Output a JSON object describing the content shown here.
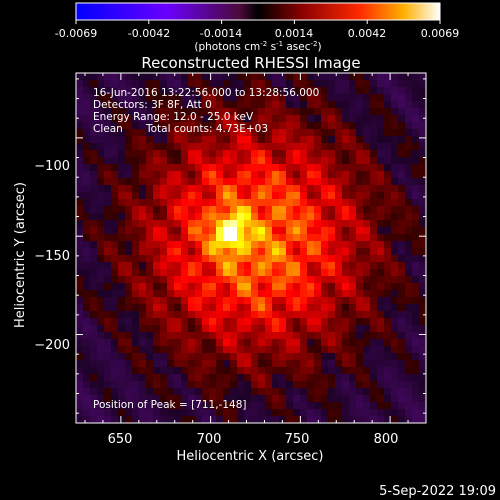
{
  "colorbar": {
    "ticks": [
      "-0.0069",
      "-0.0042",
      "-0.0014",
      "0.0014",
      "0.0042",
      "0.0069"
    ],
    "unit_main": "(photons cm",
    "unit_sup1": "-2",
    "unit_mid": " s",
    "unit_sup2": "-1",
    "unit_mid2": " asec",
    "unit_sup3": "-2",
    "unit_end": ")"
  },
  "title": "Reconstructed RHESSI Image",
  "info": {
    "line1": "16-Jun-2016 13:22:56.000 to 13:28:56.000",
    "line2": "Detectors: 3F 8F, Att 0",
    "line3": "Energy Range: 12.0 - 25.0 keV",
    "line4a": "Clean",
    "line4b": "Total counts: 4.73E+03",
    "peak": "Position of Peak = [711,-148]"
  },
  "footer": "5-Sep-2022 19:09",
  "chart_data": {
    "type": "heatmap",
    "title": "Reconstructed RHESSI Image",
    "xlabel": "Heliocentric X (arcsec)",
    "ylabel": "Heliocentric Y (arcsec)",
    "xlim": [
      625,
      820
    ],
    "ylim": [
      -245,
      -67
    ],
    "x_ticks": [
      650,
      700,
      750,
      800
    ],
    "y_ticks": [
      -100,
      -150,
      -200
    ],
    "x_tick_labels": [
      "650",
      "700",
      "750",
      "800"
    ],
    "y_tick_labels": [
      "−100",
      "−150",
      "−200"
    ],
    "colorbar_range": [
      -0.0069,
      0.0069
    ],
    "colormap": "hot",
    "peak": {
      "x": 711,
      "y": -148,
      "value": 0.0069
    },
    "source_center": {
      "x": 725,
      "y": -152
    },
    "grid": false
  }
}
